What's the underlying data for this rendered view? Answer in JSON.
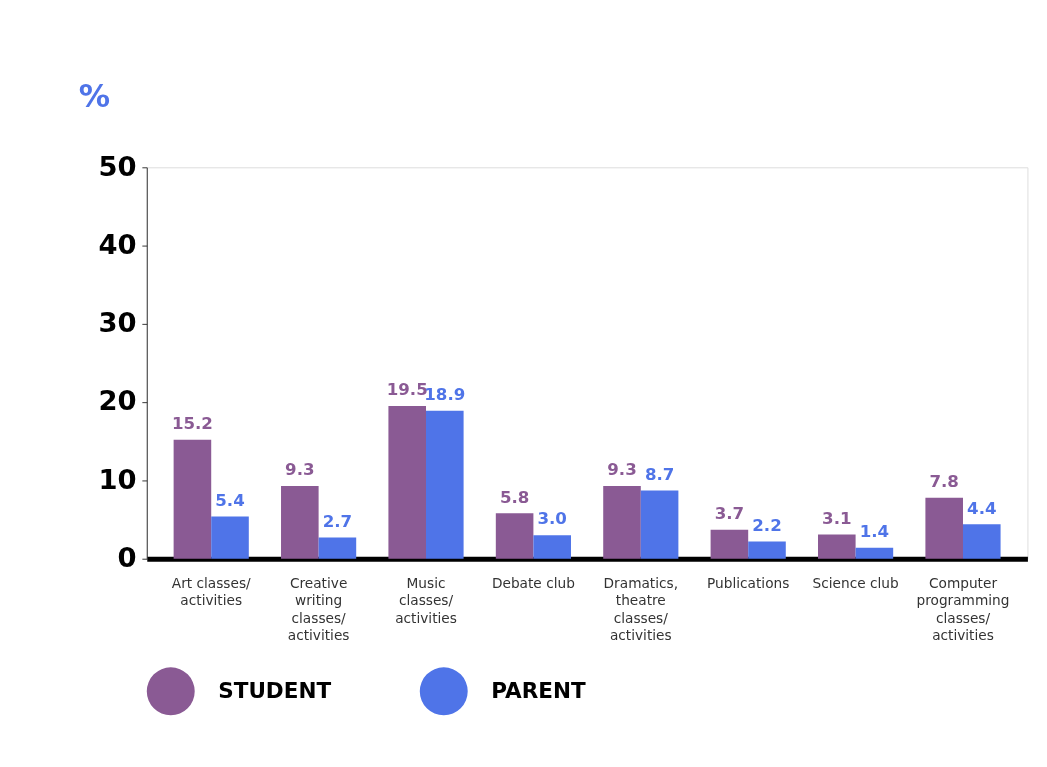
{
  "chart_data": {
    "type": "bar",
    "ylabel": "%",
    "categories": [
      "Art classes/activities",
      "Creative writing classes/activities",
      "Music classes/activities",
      "Debate club",
      "Dramatics, theatre classes/activities",
      "Publications",
      "Science club",
      "Computer programming classes/activities"
    ],
    "series": [
      {
        "name": "STUDENT",
        "color": "#8a5a94",
        "values": [
          15.2,
          9.3,
          19.5,
          5.8,
          9.3,
          3.7,
          3.1,
          7.8
        ],
        "value_labels": [
          "15.2",
          "9.3",
          "19.5",
          "5.8",
          "9.3",
          "3.7",
          "3.1",
          "7.8"
        ]
      },
      {
        "name": "PARENT",
        "color": "#4f74e8",
        "values": [
          5.4,
          2.7,
          18.9,
          3.0,
          8.7,
          2.2,
          1.4,
          4.4
        ],
        "value_labels": [
          "5.4",
          "2.7",
          "18.9",
          "3.0",
          "8.7",
          "2.2",
          "1.4",
          "4.4"
        ]
      }
    ],
    "ylim": [
      0,
      50
    ],
    "yticks": [
      0,
      10,
      20,
      30,
      40,
      50
    ],
    "grid": false,
    "legend": "bottom left"
  }
}
